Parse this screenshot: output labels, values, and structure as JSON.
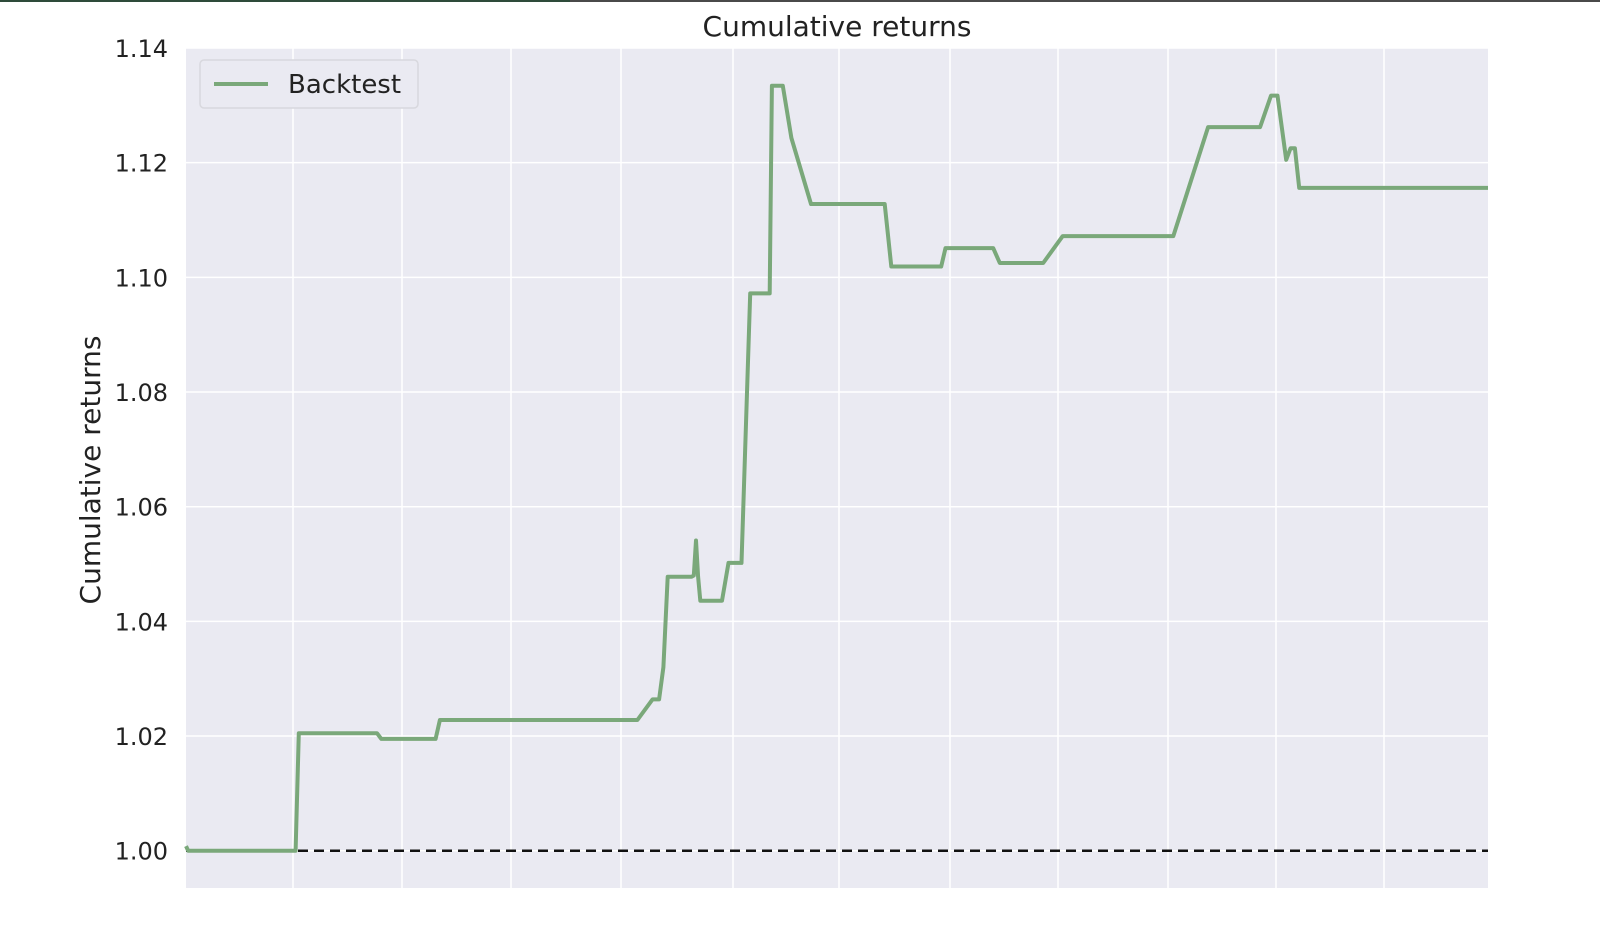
{
  "chart_data": {
    "type": "line",
    "title": "Cumulative returns",
    "xlabel": "",
    "ylabel": "Cumulative returns",
    "ylim": [
      0.9935,
      1.14
    ],
    "yticks": [
      "1.00",
      "1.02",
      "1.04",
      "1.06",
      "1.08",
      "1.10",
      "1.12",
      "1.14"
    ],
    "grid": true,
    "legend_position": "top-left",
    "reference_line": 1.0,
    "colors": {
      "series": "#7aa87a",
      "reference": "#111111",
      "plot_bg": "#eaeaf2",
      "grid": "#ffffff"
    },
    "series": [
      {
        "name": "Backtest",
        "x": [
          0,
          1,
          50,
          50.5,
          52,
          85,
          88,
          90,
          114,
          115,
          117,
          206,
          208,
          215,
          216,
          218,
          220,
          222,
          233,
          234,
          235,
          236,
          237,
          240,
          247,
          250,
          255,
          256,
          260,
          262,
          265,
          269,
          270,
          275,
          279,
          288,
          320,
          321,
          322,
          325,
          348,
          350,
          352,
          372,
          375,
          376,
          378,
          395,
          404,
          404.5,
          405,
          420,
          423,
          451,
          455,
          471,
          493,
          495,
          500,
          503,
          507,
          509,
          511,
          513,
          514,
          600
        ],
        "values": [
          1.0008,
          1.0,
          1.0,
          1.0,
          1.0205,
          1.0205,
          1.0205,
          1.0195,
          1.0195,
          1.0195,
          1.0228,
          1.0228,
          1.0228,
          1.0264,
          1.0264,
          1.0264,
          1.032,
          1.0478,
          1.0478,
          1.048,
          1.0541,
          1.0478,
          1.0436,
          1.0436,
          1.0436,
          1.0502,
          1.0502,
          1.0502,
          1.0972,
          1.0972,
          1.0972,
          1.0972,
          1.1334,
          1.1334,
          1.1243,
          1.1128,
          1.1128,
          1.1128,
          1.1128,
          1.1019,
          1.1019,
          1.1051,
          1.1051,
          1.1051,
          1.1025,
          1.1025,
          1.1025,
          1.1025,
          1.1072,
          1.1072,
          1.1072,
          1.1072,
          1.1072,
          1.1072,
          1.1072,
          1.1262,
          1.1262,
          1.1262,
          1.1317,
          1.1317,
          1.1205,
          1.1225,
          1.1225,
          1.1156,
          1.1156,
          1.1156
        ]
      }
    ]
  }
}
